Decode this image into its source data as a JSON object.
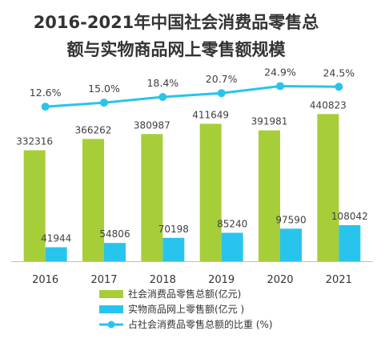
{
  "chart_data": {
    "type": "bar",
    "title_lines": [
      "2016-2021年中国社会消费品零售总",
      "额与实物商品网上零售额规模"
    ],
    "categories": [
      "2016",
      "2017",
      "2018",
      "2019",
      "2020",
      "2021"
    ],
    "series": [
      {
        "name": "社会消费品零售总额(亿元)",
        "kind": "bar",
        "color": "#a6ce39",
        "values": [
          332316,
          366262,
          380987,
          411649,
          391981,
          440823
        ],
        "labels": [
          "332316",
          "366262",
          "380987",
          "411649",
          "391981",
          "440823"
        ]
      },
      {
        "name": "实物商品网上零售额(亿元 )",
        "kind": "bar",
        "color": "#29c4ee",
        "values": [
          41944,
          54806,
          70198,
          85240,
          97590,
          108042
        ],
        "labels": [
          "41944",
          "54806",
          "70198",
          "85240",
          "97590",
          "108042"
        ]
      },
      {
        "name": "占社会消费品零售总额的比重 (%)",
        "kind": "line",
        "color": "#29c4ee",
        "values": [
          12.6,
          15.0,
          18.4,
          20.7,
          24.9,
          24.5
        ],
        "labels": [
          "12.6%",
          "15.0%",
          "18.4%",
          "20.7%",
          "24.9%",
          "24.5%"
        ]
      }
    ],
    "ylim": [
      0,
      600000
    ],
    "secondary_ylim": [
      -80,
      40
    ],
    "grid": false,
    "legend_position": "bottom",
    "axis_color": "#bfbfbf"
  }
}
